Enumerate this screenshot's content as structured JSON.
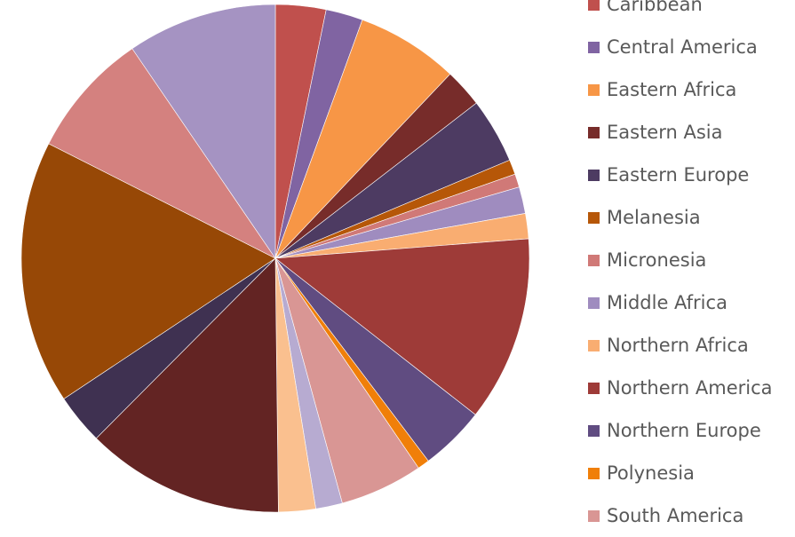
{
  "chart_data": {
    "type": "pie",
    "title": "",
    "slices": [
      {
        "label": "Caribbean",
        "value": 3.4,
        "color": "#C0504D",
        "in_legend": true
      },
      {
        "label": "Central America",
        "value": 2.5,
        "color": "#8064A2",
        "in_legend": true
      },
      {
        "label": "Eastern Africa",
        "value": 6.9,
        "color": "#F79646",
        "in_legend": true
      },
      {
        "label": "Eastern Asia",
        "value": 2.6,
        "color": "#772C2A",
        "in_legend": true
      },
      {
        "label": "Eastern Europe",
        "value": 4.4,
        "color": "#4D3B62",
        "in_legend": true
      },
      {
        "label": "Melanesia",
        "value": 1.0,
        "color": "#B65708",
        "in_legend": true
      },
      {
        "label": "Micronesia",
        "value": 0.9,
        "color": "#D07977",
        "in_legend": true
      },
      {
        "label": "Middle Africa",
        "value": 1.8,
        "color": "#9F8CBF",
        "in_legend": true
      },
      {
        "label": "Northern Africa",
        "value": 1.7,
        "color": "#F9AD71",
        "in_legend": true
      },
      {
        "label": "Northern America",
        "value": 12.5,
        "color": "#9E3B38",
        "in_legend": true
      },
      {
        "label": "Northern Europe",
        "value": 4.4,
        "color": "#604C81",
        "in_legend": true
      },
      {
        "label": "Polynesia",
        "value": 0.8,
        "color": "#F07F09",
        "in_legend": true
      },
      {
        "label": "South America",
        "value": 5.6,
        "color": "#D99694",
        "in_legend": true
      },
      {
        "label": "",
        "value": 1.8,
        "color": "#B7ABD1",
        "in_legend": false
      },
      {
        "label": "",
        "value": 2.5,
        "color": "#FAC08F",
        "in_legend": false
      },
      {
        "label": "",
        "value": 13.4,
        "color": "#632423",
        "in_legend": false
      },
      {
        "label": "",
        "value": 3.4,
        "color": "#3F3151",
        "in_legend": false
      },
      {
        "label": "",
        "value": 17.8,
        "color": "#974806",
        "in_legend": false
      },
      {
        "label": "",
        "value": 8.5,
        "color": "#D4817F",
        "in_legend": false
      },
      {
        "label": "",
        "value": 10.1,
        "color": "#A593C2",
        "in_legend": false
      }
    ]
  }
}
